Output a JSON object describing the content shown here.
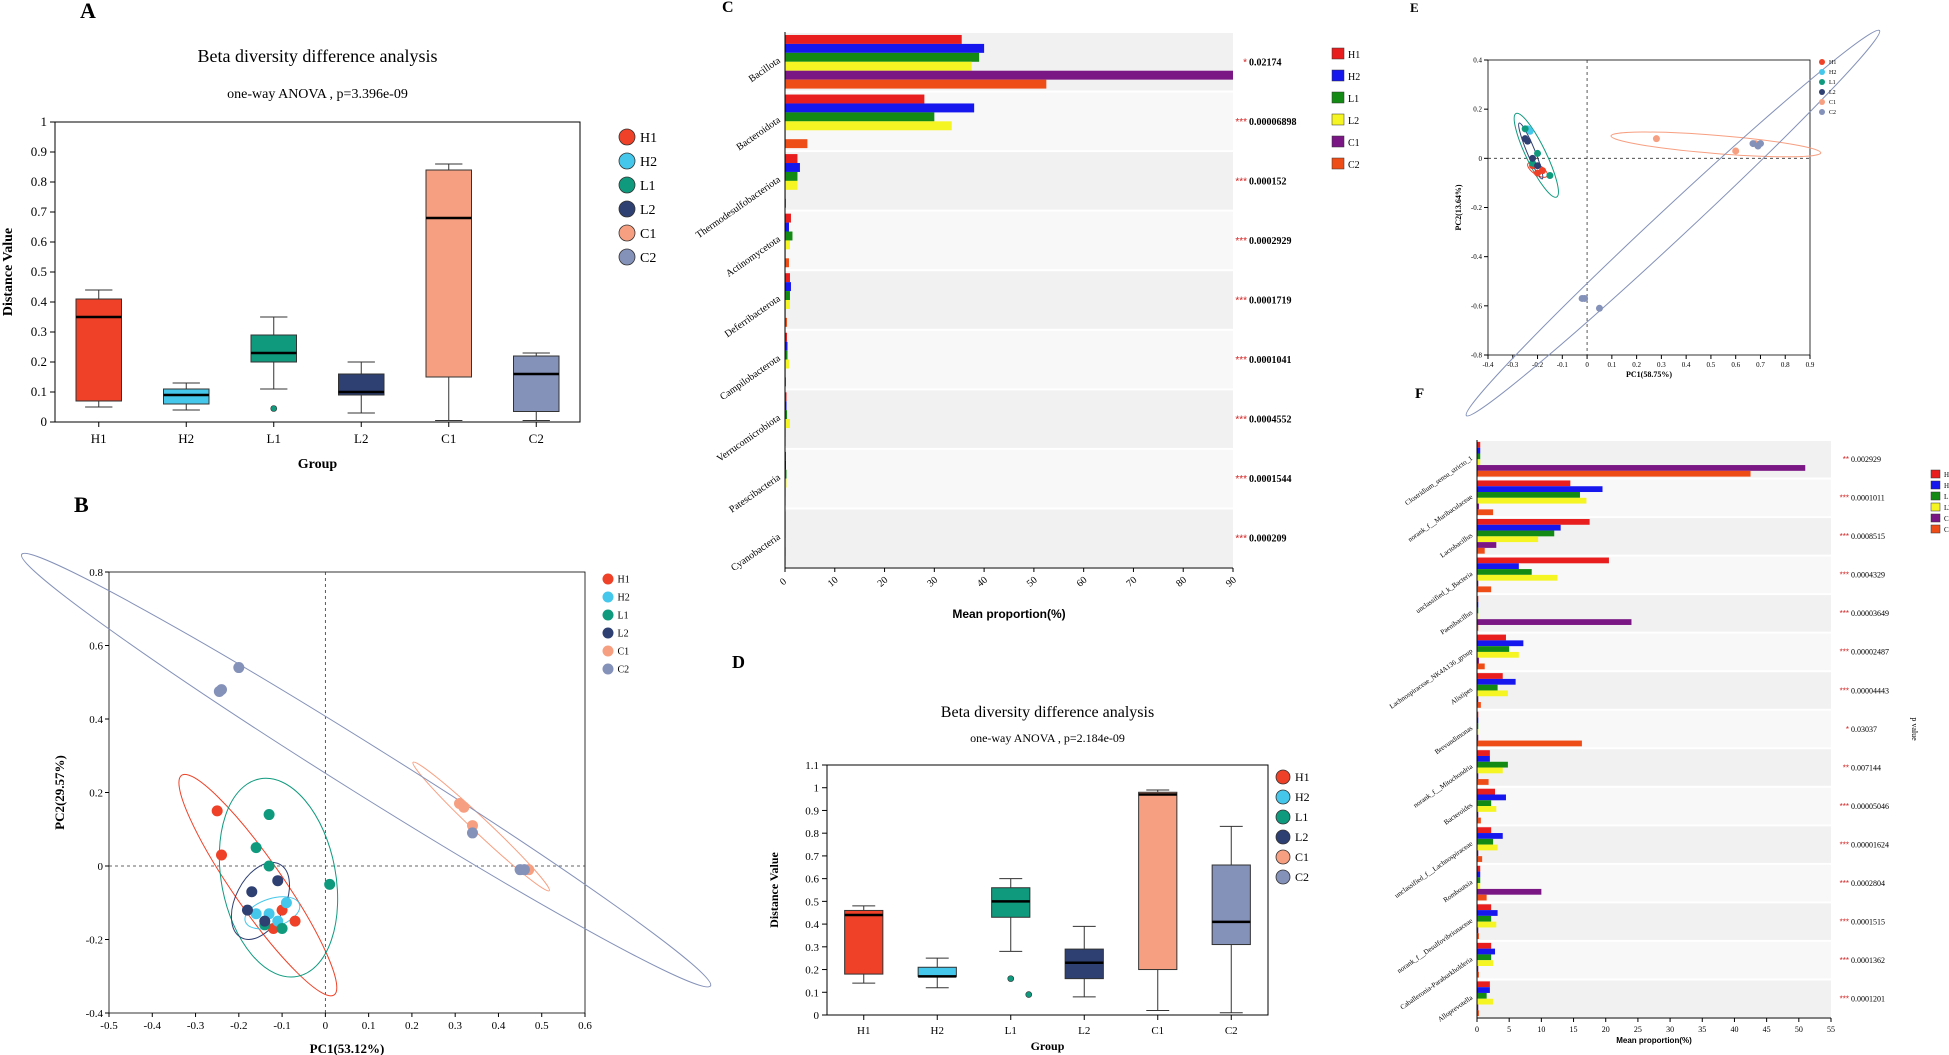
{
  "panels": {
    "A": "A",
    "B": "B",
    "C": "C",
    "D": "D",
    "E": "E",
    "F": "F"
  },
  "groups": [
    "H1",
    "H2",
    "L1",
    "L2",
    "C1",
    "C2"
  ],
  "group_colors": {
    "box": {
      "H1": "#ee4127",
      "H2": "#44c7ea",
      "L1": "#0f9a7e",
      "L2": "#2e3f72",
      "C1": "#f79f81",
      "C2": "#8491b8"
    },
    "bar": {
      "H1": "#e81e1e",
      "H2": "#1616ee",
      "L1": "#138a13",
      "L2": "#f5f523",
      "C1": "#7a1784",
      "C2": "#ef4d17"
    }
  },
  "chart_data": [
    {
      "id": "A",
      "type": "box",
      "title": "Beta diversity difference analysis",
      "subtitle": "one-way ANOVA , p=3.396e-09",
      "xlabel": "Group",
      "ylabel": "Distance Value",
      "ylim": [
        0,
        1
      ],
      "yticks": [
        "0",
        "0.1",
        "0.2",
        "0.3",
        "0.4",
        "0.5",
        "0.6",
        "0.7",
        "0.8",
        "0.9",
        "1"
      ],
      "categories": [
        "H1",
        "H2",
        "L1",
        "L2",
        "C1",
        "C2"
      ],
      "boxes": [
        {
          "group": "H1",
          "min": 0.05,
          "q1": 0.07,
          "median": 0.35,
          "q3": 0.41,
          "max": 0.44,
          "outliers": []
        },
        {
          "group": "H2",
          "min": 0.04,
          "q1": 0.06,
          "median": 0.09,
          "q3": 0.11,
          "max": 0.13,
          "outliers": []
        },
        {
          "group": "L1",
          "min": 0.11,
          "q1": 0.2,
          "median": 0.23,
          "q3": 0.29,
          "max": 0.35,
          "outliers": [
            0.045
          ]
        },
        {
          "group": "L2",
          "min": 0.03,
          "q1": 0.09,
          "median": 0.1,
          "q3": 0.16,
          "max": 0.2,
          "outliers": []
        },
        {
          "group": "C1",
          "min": 0.005,
          "q1": 0.15,
          "median": 0.68,
          "q3": 0.84,
          "max": 0.86,
          "outliers": []
        },
        {
          "group": "C2",
          "min": 0.005,
          "q1": 0.035,
          "median": 0.16,
          "q3": 0.22,
          "max": 0.23,
          "outliers": []
        }
      ]
    },
    {
      "id": "B",
      "type": "scatter",
      "xlabel": "PC1(53.12%)",
      "ylabel": "PC2(29.57%)",
      "xlim": [
        -0.5,
        0.6
      ],
      "ylim": [
        -0.4,
        0.8
      ],
      "xticks": [
        "-0.5",
        "-0.4",
        "-0.3",
        "-0.2",
        "-0.1",
        "0",
        "0.1",
        "0.2",
        "0.3",
        "0.4",
        "0.5",
        "0.6"
      ],
      "yticks": [
        "-0.4",
        "-0.2",
        "0",
        "0.2",
        "0.4",
        "0.6",
        "0.8"
      ],
      "series": [
        {
          "name": "H1",
          "points": [
            [
              -0.25,
              0.15
            ],
            [
              -0.24,
              0.03
            ],
            [
              -0.07,
              -0.15
            ],
            [
              -0.1,
              -0.12
            ],
            [
              -0.12,
              -0.17
            ]
          ]
        },
        {
          "name": "H2",
          "points": [
            [
              -0.09,
              -0.1
            ],
            [
              -0.11,
              -0.15
            ],
            [
              -0.13,
              -0.13
            ],
            [
              -0.16,
              -0.13
            ]
          ]
        },
        {
          "name": "L1",
          "points": [
            [
              -0.13,
              0.14
            ],
            [
              -0.16,
              0.05
            ],
            [
              -0.13,
              0.0
            ],
            [
              0.01,
              -0.05
            ],
            [
              -0.14,
              -0.16
            ],
            [
              -0.1,
              -0.17
            ]
          ]
        },
        {
          "name": "L2",
          "points": [
            [
              -0.11,
              -0.04
            ],
            [
              -0.17,
              -0.07
            ],
            [
              -0.18,
              -0.12
            ],
            [
              -0.14,
              -0.15
            ]
          ]
        },
        {
          "name": "C1",
          "points": [
            [
              0.31,
              0.17
            ],
            [
              0.32,
              0.16
            ],
            [
              0.34,
              0.11
            ],
            [
              0.47,
              -0.01
            ]
          ]
        },
        {
          "name": "C2",
          "points": [
            [
              -0.2,
              0.54
            ],
            [
              -0.24,
              0.48
            ],
            [
              -0.245,
              0.475
            ],
            [
              0.34,
              0.09
            ],
            [
              0.45,
              -0.01
            ],
            [
              0.46,
              -0.01
            ]
          ]
        }
      ],
      "legend_position": "top-right"
    },
    {
      "id": "C",
      "type": "bar",
      "xlabel": "Mean proportion(%)",
      "xlim": [
        0,
        90
      ],
      "xticks": [
        "0",
        "10",
        "20",
        "30",
        "40",
        "50",
        "60",
        "70",
        "80",
        "90"
      ],
      "categories": [
        "Bacillota",
        "Bacteroidota",
        "Thermodesulfobacteriota",
        "Actinomycetota",
        "Deferribacterota",
        "Campilobacterota",
        "Verrucomicrobiota",
        "Patescibacteria",
        "Cyanobacteria"
      ],
      "series": [
        {
          "name": "H1",
          "values": [
            35.5,
            28,
            2.5,
            1.2,
            1,
            0.4,
            0.3,
            0.2,
            0.1
          ]
        },
        {
          "name": "H2",
          "values": [
            40,
            38,
            3,
            0.8,
            1.2,
            0.5,
            0.3,
            0.2,
            0.1
          ]
        },
        {
          "name": "L1",
          "values": [
            39,
            30,
            2.5,
            1.5,
            1,
            0.5,
            0.4,
            0.3,
            0.1
          ]
        },
        {
          "name": "L2",
          "values": [
            37.5,
            33.5,
            2.5,
            1,
            1,
            0.8,
            1,
            0.3,
            0.2
          ]
        },
        {
          "name": "C1",
          "values": [
            90,
            0.1,
            0.1,
            0.1,
            0.1,
            0.1,
            0.1,
            0.1,
            0.1
          ]
        },
        {
          "name": "C2",
          "values": [
            52.5,
            4.5,
            0.2,
            0.8,
            0.4,
            0.2,
            0.1,
            0.1,
            0.1
          ]
        }
      ],
      "significance": [
        "*",
        "***",
        "***",
        "***",
        "***",
        "***",
        "***",
        "***",
        "***"
      ],
      "pvalues": [
        "0.02174",
        "0.00006898",
        "0.000152",
        "0.0002929",
        "0.0001719",
        "0.0001041",
        "0.0004552",
        "0.0001544",
        "0.000209"
      ],
      "legend_position": "top-right"
    },
    {
      "id": "D",
      "type": "box",
      "title": "Beta diversity difference analysis",
      "subtitle": "one-way ANOVA , p=2.184e-09",
      "xlabel": "Group",
      "ylabel": "Distance Value",
      "ylim": [
        0,
        1.1
      ],
      "yticks": [
        "0",
        "0.1",
        "0.2",
        "0.3",
        "0.4",
        "0.5",
        "0.6",
        "0.7",
        "0.8",
        "0.9",
        "1",
        "1.1"
      ],
      "categories": [
        "H1",
        "H2",
        "L1",
        "L2",
        "C1",
        "C2"
      ],
      "boxes": [
        {
          "group": "H1",
          "min": 0.14,
          "q1": 0.18,
          "median": 0.44,
          "q3": 0.46,
          "max": 0.48,
          "outliers": []
        },
        {
          "group": "H2",
          "min": 0.12,
          "q1": 0.17,
          "median": 0.17,
          "q3": 0.21,
          "max": 0.25,
          "outliers": []
        },
        {
          "group": "L1",
          "min": 0.28,
          "q1": 0.43,
          "median": 0.5,
          "q3": 0.56,
          "max": 0.6,
          "outliers": [
            0.16,
            0.09
          ]
        },
        {
          "group": "L2",
          "min": 0.08,
          "q1": 0.16,
          "median": 0.23,
          "q3": 0.29,
          "max": 0.39,
          "outliers": []
        },
        {
          "group": "C1",
          "min": 0.02,
          "q1": 0.2,
          "median": 0.97,
          "q3": 0.98,
          "max": 0.99,
          "outliers": []
        },
        {
          "group": "C2",
          "min": 0.01,
          "q1": 0.31,
          "median": 0.41,
          "q3": 0.66,
          "max": 0.83,
          "outliers": []
        }
      ]
    },
    {
      "id": "E",
      "type": "scatter",
      "xlabel": "PC1(58.75%)",
      "ylabel": "PC2(13.64%)",
      "xlim": [
        -0.4,
        0.9
      ],
      "ylim": [
        -0.8,
        0.4
      ],
      "xticks": [
        "-0.4",
        "-0.3",
        "-0.2",
        "-0.1",
        "0",
        "0.1",
        "0.2",
        "0.3",
        "0.4",
        "0.5",
        "0.6",
        "0.7",
        "0.8",
        "0.9"
      ],
      "yticks": [
        "-0.8",
        "-0.6",
        "-0.4",
        "-0.2",
        "0",
        "0.2",
        "0.4"
      ],
      "series": [
        {
          "name": "H1",
          "points": [
            [
              -0.2,
              -0.06
            ],
            [
              -0.18,
              -0.05
            ],
            [
              -0.22,
              -0.03
            ]
          ]
        },
        {
          "name": "H2",
          "points": [
            [
              -0.24,
              0.12
            ],
            [
              -0.23,
              0.11
            ]
          ]
        },
        {
          "name": "L1",
          "points": [
            [
              -0.25,
              0.12
            ],
            [
              -0.2,
              0.02
            ],
            [
              -0.15,
              -0.07
            ],
            [
              -0.22,
              -0.02
            ]
          ]
        },
        {
          "name": "L2",
          "points": [
            [
              -0.24,
              0.07
            ],
            [
              -0.22,
              0.0
            ],
            [
              -0.2,
              -0.03
            ],
            [
              -0.25,
              0.08
            ]
          ]
        },
        {
          "name": "C1",
          "points": [
            [
              0.28,
              0.08
            ],
            [
              0.6,
              0.03
            ],
            [
              0.68,
              0.06
            ]
          ]
        },
        {
          "name": "C2",
          "points": [
            [
              0.67,
              0.06
            ],
            [
              0.69,
              0.05
            ],
            [
              0.7,
              0.06
            ],
            [
              -0.01,
              -0.57
            ],
            [
              -0.02,
              -0.57
            ],
            [
              0.05,
              -0.61
            ]
          ]
        }
      ],
      "legend_position": "top-right"
    },
    {
      "id": "F",
      "type": "bar",
      "xlabel": "Mean proportion(%)",
      "right_label": "p value",
      "xlim": [
        0,
        55
      ],
      "xticks": [
        "0",
        "5",
        "10",
        "15",
        "20",
        "25",
        "30",
        "35",
        "40",
        "45",
        "50",
        "55"
      ],
      "categories": [
        "Clostridium_sensu_stricto_1",
        "norank_f__Muribaculaceae",
        "Lactobacillus",
        "unclassified_k_Bacteria",
        "Paenibacillus",
        "Lachnospiraceae_NK4A136_group",
        "Alistipes",
        "Brevundimonas",
        "norank_f__Mitochondria",
        "Bacteroides",
        "unclassified_f__Lachnospiraceae",
        "Romboutsia",
        "norank_f__Desulfovibrionaceae",
        "Caballeronia-Paraburkholderia",
        "Alloprevotella"
      ],
      "series": [
        {
          "name": "H1",
          "values": [
            0.5,
            14.5,
            17.5,
            20.5,
            0.2,
            4.5,
            4,
            0.2,
            2,
            2.8,
            2.2,
            0.5,
            2.2,
            2.2,
            2
          ]
        },
        {
          "name": "H2",
          "values": [
            0.5,
            19.5,
            13,
            6.5,
            0.2,
            7.2,
            6,
            0.2,
            2,
            4.5,
            4,
            0.5,
            3.2,
            2.8,
            2
          ]
        },
        {
          "name": "L1",
          "values": [
            0.5,
            16,
            12,
            8.5,
            0.2,
            5,
            3.2,
            0.2,
            4.8,
            2.2,
            2.5,
            0.5,
            2.2,
            2.2,
            1.5
          ]
        },
        {
          "name": "L2",
          "values": [
            0.5,
            17,
            9.5,
            12.5,
            0.2,
            6.5,
            4.8,
            0.2,
            4,
            3,
            3.2,
            0.5,
            3,
            2.5,
            2.5
          ]
        },
        {
          "name": "C1",
          "values": [
            51,
            0.3,
            3,
            0.2,
            24,
            0.3,
            0.2,
            0.2,
            0.2,
            0.2,
            0.2,
            10,
            0.2,
            0.2,
            0.2
          ]
        },
        {
          "name": "C2",
          "values": [
            42.5,
            2.5,
            1.2,
            2.2,
            0.2,
            1.2,
            0.6,
            16.3,
            1.8,
            0.6,
            0.8,
            1.5,
            0.3,
            0.3,
            0.3
          ]
        }
      ],
      "significance": [
        "**",
        "***",
        "***",
        "***",
        "***",
        "***",
        "***",
        "*",
        "**",
        "***",
        "***",
        "***",
        "***",
        "***",
        "***"
      ],
      "pvalues": [
        "0.002929",
        "0.0001011",
        "0.0008515",
        "0.0004329",
        "0.00003649",
        "0.00002487",
        "0.00004443",
        "0.03037",
        "0.007144",
        "0.00005046",
        "0.00001624",
        "0.0002804",
        "0.0001515",
        "0.0001362",
        "0.0001201"
      ],
      "legend_position": "top-right"
    }
  ]
}
